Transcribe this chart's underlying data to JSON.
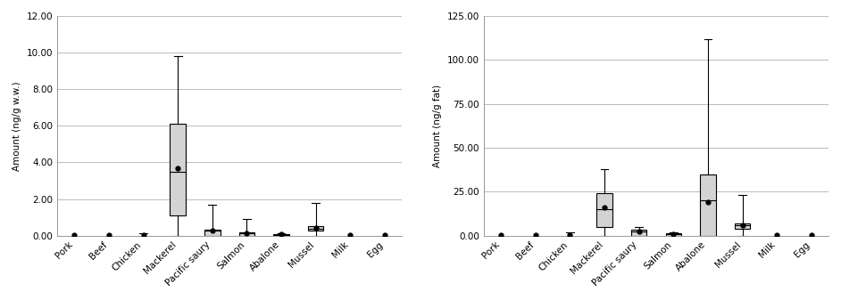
{
  "categories": [
    "Pork",
    "Beef",
    "Chicken",
    "Mackerel",
    "Pacific saury",
    "Salmon",
    "Abalone",
    "Mussel",
    "Milk",
    "Egg"
  ],
  "chart1": {
    "ylabel": "Amount (ng/g w.w.)",
    "ylim": [
      0,
      12
    ],
    "yticks": [
      0.0,
      2.0,
      4.0,
      6.0,
      8.0,
      10.0,
      12.0
    ],
    "ytick_labels": [
      "0.00",
      "2.00",
      "4.00",
      "6.00",
      "8.00",
      "10.00",
      "12.00"
    ],
    "boxes": [
      {
        "q1": 0.0,
        "median": 0.0,
        "q3": 0.0,
        "whisker_low": 0.0,
        "whisker_high": 0.0,
        "mean": 0.05
      },
      {
        "q1": 0.0,
        "median": 0.0,
        "q3": 0.0,
        "whisker_low": 0.0,
        "whisker_high": 0.0,
        "mean": 0.03
      },
      {
        "q1": 0.0,
        "median": 0.0,
        "q3": 0.0,
        "whisker_low": 0.0,
        "whisker_high": 0.15,
        "mean": 0.05
      },
      {
        "q1": 1.1,
        "median": 3.5,
        "q3": 6.1,
        "whisker_low": 0.0,
        "whisker_high": 9.8,
        "mean": 3.7
      },
      {
        "q1": 0.0,
        "median": 0.3,
        "q3": 0.35,
        "whisker_low": 0.0,
        "whisker_high": 1.7,
        "mean": 0.3
      },
      {
        "q1": 0.0,
        "median": 0.15,
        "q3": 0.2,
        "whisker_low": 0.0,
        "whisker_high": 0.9,
        "mean": 0.15
      },
      {
        "q1": 0.0,
        "median": 0.05,
        "q3": 0.1,
        "whisker_low": 0.0,
        "whisker_high": 0.15,
        "mean": 0.07
      },
      {
        "q1": 0.3,
        "median": 0.4,
        "q3": 0.5,
        "whisker_low": 0.0,
        "whisker_high": 1.8,
        "mean": 0.45
      },
      {
        "q1": 0.0,
        "median": 0.0,
        "q3": 0.0,
        "whisker_low": 0.0,
        "whisker_high": 0.0,
        "mean": 0.03
      },
      {
        "q1": 0.0,
        "median": 0.0,
        "q3": 0.0,
        "whisker_low": 0.0,
        "whisker_high": 0.0,
        "mean": 0.02
      }
    ]
  },
  "chart2": {
    "ylabel": "Amount (ng/g fat)",
    "ylim": [
      0,
      125
    ],
    "yticks": [
      0.0,
      25.0,
      50.0,
      75.0,
      100.0,
      125.0
    ],
    "ytick_labels": [
      "0.00",
      "25.00",
      "50.00",
      "75.00",
      "100.00",
      "125.00"
    ],
    "boxes": [
      {
        "q1": 0.0,
        "median": 0.0,
        "q3": 0.0,
        "whisker_low": 0.0,
        "whisker_high": 0.0,
        "mean": 0.5
      },
      {
        "q1": 0.0,
        "median": 0.0,
        "q3": 0.0,
        "whisker_low": 0.0,
        "whisker_high": 0.0,
        "mean": 0.5
      },
      {
        "q1": 0.0,
        "median": 0.0,
        "q3": 0.0,
        "whisker_low": 0.0,
        "whisker_high": 2.0,
        "mean": 0.5
      },
      {
        "q1": 5.0,
        "median": 15.0,
        "q3": 24.0,
        "whisker_low": 0.0,
        "whisker_high": 38.0,
        "mean": 16.0
      },
      {
        "q1": 0.0,
        "median": 2.5,
        "q3": 3.5,
        "whisker_low": 0.0,
        "whisker_high": 5.0,
        "mean": 2.5
      },
      {
        "q1": 0.0,
        "median": 1.0,
        "q3": 1.5,
        "whisker_low": 0.0,
        "whisker_high": 2.0,
        "mean": 1.0
      },
      {
        "q1": 0.0,
        "median": 20.0,
        "q3": 35.0,
        "whisker_low": 0.0,
        "whisker_high": 112.0,
        "mean": 19.0
      },
      {
        "q1": 4.0,
        "median": 6.0,
        "q3": 7.0,
        "whisker_low": 0.0,
        "whisker_high": 23.0,
        "mean": 6.0
      },
      {
        "q1": 0.0,
        "median": 0.0,
        "q3": 0.0,
        "whisker_low": 0.0,
        "whisker_high": 0.0,
        "mean": 0.3
      },
      {
        "q1": 0.0,
        "median": 0.0,
        "q3": 0.0,
        "whisker_low": 0.0,
        "whisker_high": 0.0,
        "mean": 0.3
      }
    ]
  },
  "box_color": "#d3d3d3",
  "box_edge_color": "#000000",
  "whisker_color": "#000000",
  "mean_marker_color": "#000000",
  "box_width": 0.45,
  "fig_bg_color": "#ffffff",
  "ax_bg_color": "#ffffff",
  "grid_color": "#bbbbbb",
  "font_size": 7.5,
  "ylabel_fontsize": 7.5,
  "xtick_fontsize": 7.5,
  "ytick_fontsize": 7.5
}
